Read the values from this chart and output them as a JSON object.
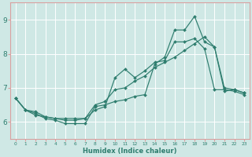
{
  "xlabel": "Humidex (Indice chaleur)",
  "ylabel": "",
  "xlim": [
    -0.5,
    23.5
  ],
  "ylim": [
    5.5,
    9.5
  ],
  "yticks": [
    6,
    7,
    8,
    9
  ],
  "xticks": [
    0,
    1,
    2,
    3,
    4,
    5,
    6,
    7,
    8,
    9,
    10,
    11,
    12,
    13,
    14,
    15,
    16,
    17,
    18,
    19,
    20,
    21,
    22,
    23
  ],
  "bg_color": "#cfe8e5",
  "line_color": "#2e7d6e",
  "grid_color": "#ffffff",
  "spine_color": "#d9a0a0",
  "lines": [
    {
      "x": [
        0,
        1,
        2,
        3,
        4,
        5,
        6,
        7,
        8,
        9,
        10,
        11,
        12,
        13,
        14,
        15,
        16,
        17,
        18,
        19,
        20,
        21,
        22,
        23
      ],
      "y": [
        6.7,
        6.35,
        6.25,
        6.1,
        6.05,
        5.95,
        5.95,
        5.95,
        6.45,
        6.5,
        6.6,
        6.65,
        6.75,
        6.8,
        7.7,
        7.9,
        8.7,
        8.7,
        9.1,
        8.35,
        8.2,
        6.9,
        6.95,
        6.85
      ]
    },
    {
      "x": [
        0,
        1,
        2,
        3,
        4,
        5,
        6,
        7,
        8,
        9,
        10,
        11,
        12,
        13,
        14,
        15,
        16,
        17,
        18,
        19,
        20,
        21,
        22,
        23
      ],
      "y": [
        6.7,
        6.35,
        6.2,
        6.15,
        6.1,
        6.05,
        6.05,
        6.1,
        6.35,
        6.45,
        7.3,
        7.55,
        7.3,
        7.5,
        7.75,
        7.8,
        8.35,
        8.35,
        8.45,
        8.15,
        6.95,
        6.95,
        6.9,
        6.8
      ]
    },
    {
      "x": [
        0,
        1,
        2,
        3,
        4,
        5,
        6,
        7,
        8,
        9,
        10,
        11,
        12,
        13,
        14,
        15,
        16,
        17,
        18,
        19,
        20,
        21,
        22,
        23
      ],
      "y": [
        6.7,
        6.35,
        6.3,
        6.15,
        6.1,
        6.1,
        6.1,
        6.1,
        6.5,
        6.6,
        6.95,
        7.0,
        7.2,
        7.35,
        7.6,
        7.75,
        7.9,
        8.1,
        8.3,
        8.5,
        8.2,
        7.0,
        6.95,
        6.85
      ]
    }
  ]
}
